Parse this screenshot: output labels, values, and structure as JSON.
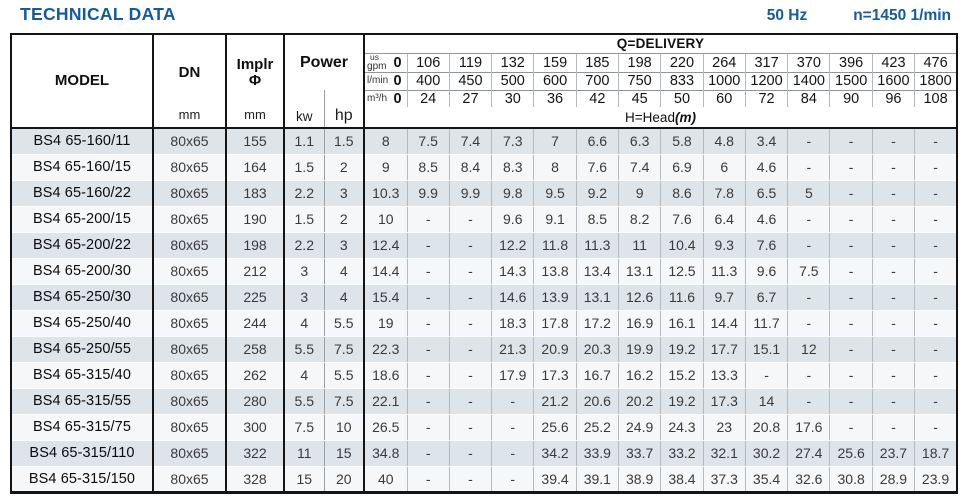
{
  "page": {
    "title": "TECHNICAL DATA",
    "frequency": "50 Hz",
    "speed": "n=1450 1/min"
  },
  "colors": {
    "accent_blue": "#155a9e",
    "row_shade": "#dde4ea"
  },
  "table": {
    "header": {
      "model": "MODEL",
      "dn": "DN",
      "implr_line1": "Implr",
      "implr_line2": "Φ",
      "mm": "mm",
      "power": "Power",
      "kw": "kw",
      "hp": "hp",
      "delivery_title": "Q=DELIVERY",
      "head_title": "H=Head",
      "head_unit": "(m)"
    },
    "delivery_units": [
      {
        "label_top": "us",
        "label": "gpm",
        "zero": "0",
        "values": [
          "106",
          "119",
          "132",
          "159",
          "185",
          "198",
          "220",
          "264",
          "317",
          "370",
          "396",
          "423",
          "476"
        ]
      },
      {
        "label_top": "",
        "label": "l/min",
        "zero": "0",
        "values": [
          "400",
          "450",
          "500",
          "600",
          "700",
          "750",
          "833",
          "1000",
          "1200",
          "1400",
          "1500",
          "1600",
          "1800"
        ]
      },
      {
        "label_top": "",
        "label": "m³/h",
        "zero": "0",
        "values": [
          "24",
          "27",
          "30",
          "36",
          "42",
          "45",
          "50",
          "60",
          "72",
          "84",
          "90",
          "96",
          "108"
        ]
      }
    ],
    "rows": [
      {
        "model": "BS4 65-160/11",
        "dn": "80x65",
        "implr": "155",
        "kw": "1.1",
        "hp": "1.5",
        "heads": [
          "8",
          "7.5",
          "7.4",
          "7.3",
          "7",
          "6.6",
          "6.3",
          "5.8",
          "4.8",
          "3.4",
          "-",
          "-",
          "-",
          "-"
        ]
      },
      {
        "model": "BS4 65-160/15",
        "dn": "80x65",
        "implr": "164",
        "kw": "1.5",
        "hp": "2",
        "heads": [
          "9",
          "8.5",
          "8.4",
          "8.3",
          "8",
          "7.6",
          "7.4",
          "6.9",
          "6",
          "4.6",
          "-",
          "-",
          "-",
          "-"
        ]
      },
      {
        "model": "BS4 65-160/22",
        "dn": "80x65",
        "implr": "183",
        "kw": "2.2",
        "hp": "3",
        "heads": [
          "10.3",
          "9.9",
          "9.9",
          "9.8",
          "9.5",
          "9.2",
          "9",
          "8.6",
          "7.8",
          "6.5",
          "5",
          "-",
          "-",
          "-"
        ]
      },
      {
        "model": "BS4 65-200/15",
        "dn": "80x65",
        "implr": "190",
        "kw": "1.5",
        "hp": "2",
        "heads": [
          "10",
          "-",
          "-",
          "9.6",
          "9.1",
          "8.5",
          "8.2",
          "7.6",
          "6.4",
          "4.6",
          "-",
          "-",
          "-",
          "-"
        ]
      },
      {
        "model": "BS4 65-200/22",
        "dn": "80x65",
        "implr": "198",
        "kw": "2.2",
        "hp": "3",
        "heads": [
          "12.4",
          "-",
          "-",
          "12.2",
          "11.8",
          "11.3",
          "11",
          "10.4",
          "9.3",
          "7.6",
          "-",
          "-",
          "-",
          "-"
        ]
      },
      {
        "model": "BS4 65-200/30",
        "dn": "80x65",
        "implr": "212",
        "kw": "3",
        "hp": "4",
        "heads": [
          "14.4",
          "-",
          "-",
          "14.3",
          "13.8",
          "13.4",
          "13.1",
          "12.5",
          "11.3",
          "9.6",
          "7.5",
          "-",
          "-",
          "-"
        ]
      },
      {
        "model": "BS4 65-250/30",
        "dn": "80x65",
        "implr": "225",
        "kw": "3",
        "hp": "4",
        "heads": [
          "15.4",
          "-",
          "-",
          "14.6",
          "13.9",
          "13.1",
          "12.6",
          "11.6",
          "9.7",
          "6.7",
          "-",
          "-",
          "-",
          "-"
        ]
      },
      {
        "model": "BS4 65-250/40",
        "dn": "80x65",
        "implr": "244",
        "kw": "4",
        "hp": "5.5",
        "heads": [
          "19",
          "-",
          "-",
          "18.3",
          "17.8",
          "17.2",
          "16.9",
          "16.1",
          "14.4",
          "11.7",
          "-",
          "-",
          "-",
          "-"
        ]
      },
      {
        "model": "BS4 65-250/55",
        "dn": "80x65",
        "implr": "258",
        "kw": "5.5",
        "hp": "7.5",
        "heads": [
          "22.3",
          "-",
          "-",
          "21.3",
          "20.9",
          "20.3",
          "19.9",
          "19.2",
          "17.7",
          "15.1",
          "12",
          "-",
          "-",
          "-"
        ]
      },
      {
        "model": "BS4 65-315/40",
        "dn": "80x65",
        "implr": "262",
        "kw": "4",
        "hp": "5.5",
        "heads": [
          "18.6",
          "-",
          "-",
          "17.9",
          "17.3",
          "16.7",
          "16.2",
          "15.2",
          "13.3",
          "-",
          "-",
          "-",
          "-",
          "-"
        ]
      },
      {
        "model": "BS4 65-315/55",
        "dn": "80x65",
        "implr": "280",
        "kw": "5.5",
        "hp": "7.5",
        "heads": [
          "22.1",
          "-",
          "-",
          "-",
          "21.2",
          "20.6",
          "20.2",
          "19.2",
          "17.3",
          "14",
          "-",
          "-",
          "-",
          "-"
        ]
      },
      {
        "model": "BS4 65-315/75",
        "dn": "80x65",
        "implr": "300",
        "kw": "7.5",
        "hp": "10",
        "heads": [
          "26.5",
          "-",
          "-",
          "-",
          "25.6",
          "25.2",
          "24.9",
          "24.3",
          "23",
          "20.8",
          "17.6",
          "-",
          "-",
          "-"
        ]
      },
      {
        "model": "BS4 65-315/110",
        "dn": "80x65",
        "implr": "322",
        "kw": "11",
        "hp": "15",
        "heads": [
          "34.8",
          "-",
          "-",
          "-",
          "34.2",
          "33.9",
          "33.7",
          "33.2",
          "32.1",
          "30.2",
          "27.4",
          "25.6",
          "23.7",
          "18.7"
        ]
      },
      {
        "model": "BS4 65-315/150",
        "dn": "80x65",
        "implr": "328",
        "kw": "15",
        "hp": "20",
        "heads": [
          "40",
          "-",
          "-",
          "-",
          "39.4",
          "39.1",
          "38.9",
          "38.4",
          "37.3",
          "35.4",
          "32.6",
          "30.8",
          "28.9",
          "23.9"
        ]
      }
    ]
  }
}
